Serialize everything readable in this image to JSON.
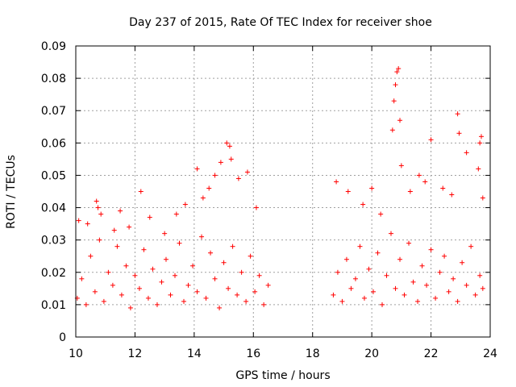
{
  "chart_data": {
    "type": "scatter",
    "title": "Day 237 of 2015, Rate Of TEC Index for receiver shoe",
    "xlabel": "GPS time / hours",
    "ylabel": "ROTI / TECUs",
    "xlim": [
      10,
      24
    ],
    "ylim": [
      0,
      0.09
    ],
    "xticks": [
      10,
      12,
      14,
      16,
      18,
      20,
      22,
      24
    ],
    "yticks": [
      0,
      0.01,
      0.02,
      0.03,
      0.04,
      0.05,
      0.06,
      0.07,
      0.08,
      0.09
    ],
    "grid": true,
    "marker": "+",
    "color": "#ff0000",
    "series": [
      {
        "name": "ROTI",
        "x": [
          10.05,
          10.2,
          10.35,
          10.5,
          10.65,
          10.8,
          10.95,
          11.1,
          11.25,
          11.4,
          11.55,
          11.7,
          11.85,
          12.0,
          12.15,
          12.3,
          12.45,
          12.6,
          12.75,
          12.9,
          13.05,
          13.2,
          13.35,
          13.5,
          13.65,
          13.8,
          13.95,
          14.1,
          14.25,
          14.4,
          14.55,
          14.7,
          14.85,
          15.0,
          15.15,
          15.3,
          15.45,
          15.6,
          15.75,
          15.9,
          16.05,
          16.2,
          16.35,
          16.5,
          10.1,
          10.4,
          10.7,
          10.75,
          10.85,
          11.3,
          11.5,
          11.8,
          12.2,
          12.5,
          13.0,
          13.4,
          13.7,
          14.1,
          14.3,
          14.5,
          14.7,
          14.9,
          15.1,
          15.2,
          15.25,
          15.5,
          15.8,
          16.1,
          18.7,
          18.85,
          19.0,
          19.15,
          19.3,
          19.45,
          19.6,
          19.75,
          19.9,
          20.05,
          20.2,
          20.35,
          20.5,
          20.65,
          20.8,
          20.95,
          21.1,
          21.25,
          21.4,
          21.55,
          21.7,
          21.85,
          22.0,
          22.15,
          22.3,
          22.45,
          22.6,
          22.75,
          22.9,
          23.05,
          23.2,
          23.35,
          23.5,
          23.65,
          23.75,
          18.8,
          19.2,
          19.7,
          20.0,
          20.3,
          20.7,
          20.75,
          20.8,
          20.85,
          20.9,
          20.95,
          21.0,
          21.3,
          21.6,
          21.8,
          22.0,
          22.4,
          22.7,
          22.9,
          22.95,
          23.2,
          23.6,
          23.65,
          23.7,
          23.75
        ],
        "y": [
          0.012,
          0.018,
          0.01,
          0.025,
          0.014,
          0.03,
          0.011,
          0.02,
          0.016,
          0.028,
          0.013,
          0.022,
          0.009,
          0.019,
          0.015,
          0.027,
          0.012,
          0.021,
          0.01,
          0.017,
          0.024,
          0.013,
          0.019,
          0.029,
          0.011,
          0.016,
          0.022,
          0.014,
          0.031,
          0.012,
          0.026,
          0.018,
          0.009,
          0.023,
          0.015,
          0.028,
          0.013,
          0.02,
          0.011,
          0.025,
          0.014,
          0.019,
          0.01,
          0.016,
          0.036,
          0.035,
          0.042,
          0.04,
          0.038,
          0.033,
          0.039,
          0.034,
          0.045,
          0.037,
          0.032,
          0.038,
          0.041,
          0.052,
          0.043,
          0.046,
          0.05,
          0.054,
          0.06,
          0.059,
          0.055,
          0.049,
          0.051,
          0.04,
          0.013,
          0.02,
          0.011,
          0.024,
          0.015,
          0.018,
          0.028,
          0.012,
          0.021,
          0.014,
          0.026,
          0.01,
          0.019,
          0.032,
          0.015,
          0.024,
          0.013,
          0.029,
          0.017,
          0.011,
          0.022,
          0.016,
          0.027,
          0.012,
          0.02,
          0.025,
          0.014,
          0.018,
          0.011,
          0.023,
          0.016,
          0.028,
          0.013,
          0.019,
          0.015,
          0.048,
          0.045,
          0.041,
          0.046,
          0.038,
          0.064,
          0.073,
          0.078,
          0.082,
          0.083,
          0.067,
          0.053,
          0.045,
          0.05,
          0.048,
          0.061,
          0.046,
          0.044,
          0.069,
          0.063,
          0.057,
          0.052,
          0.06,
          0.062,
          0.043
        ]
      }
    ]
  }
}
